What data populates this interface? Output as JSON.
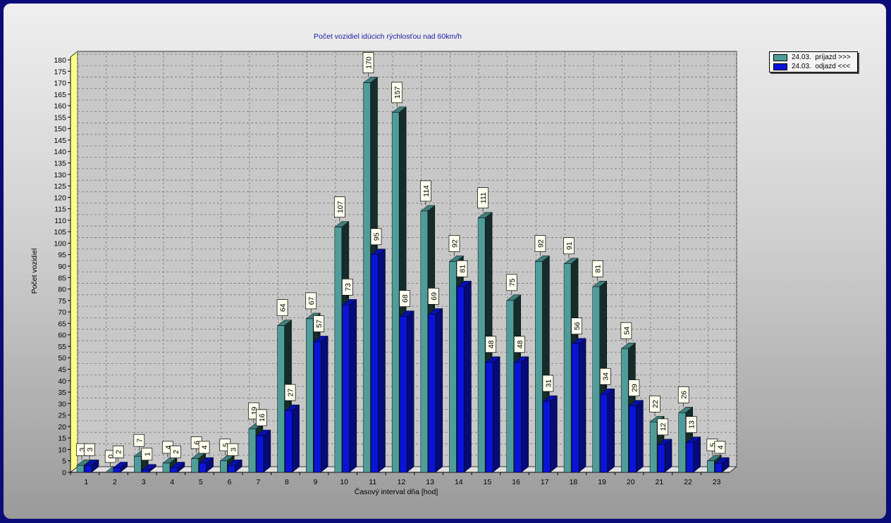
{
  "chart_data": {
    "type": "bar",
    "title": "Počet vozidiel idúcich rýchlosťou nad 60km/h",
    "xlabel": "Časový interval dňa [hod]",
    "ylabel": "Počet vozidiel",
    "ylim": [
      0,
      180
    ],
    "ytick_step": 5,
    "categories": [
      "1",
      "2",
      "3",
      "4",
      "5",
      "6",
      "7",
      "8",
      "9",
      "10",
      "11",
      "12",
      "13",
      "14",
      "15",
      "16",
      "17",
      "18",
      "19",
      "20",
      "21",
      "22",
      "23"
    ],
    "series": [
      {
        "name": "24.03.  príjazd >>>",
        "color": "#4f9d9a",
        "values": [
          3,
          0,
          7,
          4,
          6,
          5,
          19,
          64,
          67,
          107,
          170,
          157,
          114,
          92,
          111,
          75,
          92,
          91,
          81,
          54,
          22,
          26,
          5
        ]
      },
      {
        "name": "24.03.  odjazd <<<",
        "color": "#0a14d8",
        "values": [
          3,
          2,
          1,
          2,
          4,
          3,
          16,
          27,
          57,
          73,
          95,
          68,
          69,
          81,
          48,
          48,
          31,
          56,
          34,
          29,
          12,
          13,
          4
        ]
      }
    ],
    "grid": true,
    "legend": "top-right",
    "colors": {
      "background_frame": "#0c0c78",
      "title": "#1a1aa8",
      "floor": "#ffff88"
    }
  }
}
